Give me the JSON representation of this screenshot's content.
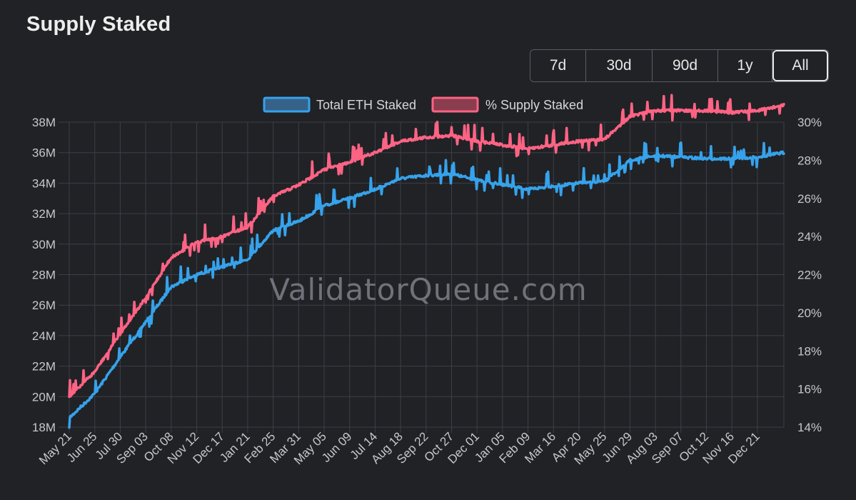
{
  "page": {
    "title": "Supply Staked"
  },
  "range_buttons": [
    {
      "label": "7d",
      "active": false
    },
    {
      "label": "30d",
      "active": false
    },
    {
      "label": "90d",
      "active": false
    },
    {
      "label": "1y",
      "active": false
    },
    {
      "label": "All",
      "active": true
    }
  ],
  "colors": {
    "eth": "#36a2eb",
    "pct": "#ff6384",
    "background": "#202226",
    "grid": "#3c3f45"
  },
  "chart_data": {
    "type": "line",
    "title": "Supply Staked",
    "watermark": "ValidatorQueue.com",
    "categories": [
      "May 21",
      "Jun 25",
      "Jul 30",
      "Sep 03",
      "Oct 08",
      "Nov 12",
      "Dec 17",
      "Jan 21",
      "Feb 25",
      "Mar 31",
      "May 05",
      "Jun 09",
      "Jul 14",
      "Aug 18",
      "Sep 22",
      "Oct 27",
      "Dec 01",
      "Jan 05",
      "Feb 09",
      "Mar 16",
      "Apr 20",
      "May 25",
      "Jun 29",
      "Aug 03",
      "Sep 07",
      "Oct 12",
      "Nov 16",
      "Dec 21"
    ],
    "y_left": {
      "min": 18,
      "max": 38,
      "step": 2,
      "suffix": "M",
      "ticks": [
        "18M",
        "20M",
        "22M",
        "24M",
        "26M",
        "28M",
        "30M",
        "32M",
        "34M",
        "36M",
        "38M"
      ]
    },
    "y_right": {
      "min": 14,
      "max": 30,
      "step": 2,
      "suffix": "%",
      "ticks": [
        "14%",
        "16%",
        "18%",
        "20%",
        "22%",
        "24%",
        "26%",
        "28%",
        "30%"
      ]
    },
    "legend": {
      "position": "top-center"
    },
    "series": [
      {
        "name": "Total ETH Staked",
        "axis": "left",
        "color": "#36a2eb",
        "values": [
          18.6,
          20.2,
          22.6,
          24.9,
          27.2,
          28.0,
          28.5,
          29.0,
          30.9,
          31.5,
          32.5,
          33.0,
          33.6,
          34.3,
          34.5,
          34.6,
          34.2,
          33.9,
          33.6,
          33.8,
          34.0,
          34.1,
          35.5,
          35.8,
          35.7,
          35.6,
          35.6,
          35.7
        ],
        "end": 36.0
      },
      {
        "name": "% Supply Staked",
        "axis": "right",
        "color": "#ff6384",
        "values": [
          15.6,
          16.9,
          18.9,
          20.8,
          22.9,
          23.7,
          24.0,
          24.5,
          26.1,
          26.7,
          27.5,
          27.9,
          28.4,
          29.0,
          29.2,
          29.3,
          29.0,
          28.8,
          28.6,
          28.8,
          29.0,
          29.1,
          30.3,
          30.6,
          30.6,
          30.6,
          30.5,
          30.6
        ],
        "end": 30.9
      }
    ]
  }
}
